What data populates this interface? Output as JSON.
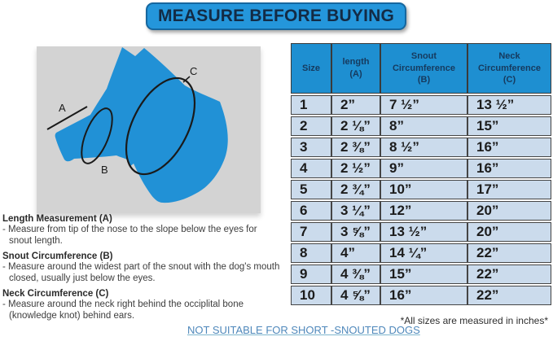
{
  "banner": {
    "title": "MEASURE BEFORE BUYING"
  },
  "diagram": {
    "label_a": "A",
    "label_b": "B",
    "label_c": "C"
  },
  "table": {
    "headers": [
      "Size",
      "length\n(A)",
      "Snout\nCircumference\n(B)",
      "Neck\nCircumference\n(C)"
    ],
    "rows": [
      [
        "1",
        "2”",
        "7 ½”",
        "13 ½”"
      ],
      [
        "2",
        "2 ⅛”",
        "8”",
        "15”"
      ],
      [
        "3",
        "2 ⅜”",
        "8 ½”",
        "16”"
      ],
      [
        "4",
        "2 ½”",
        "9”",
        "16”"
      ],
      [
        "5",
        "2 ¾”",
        "10”",
        "17”"
      ],
      [
        "6",
        "3 ¼”",
        "12”",
        "20”"
      ],
      [
        "7",
        "3 ⅝”",
        "13 ½”",
        "20”"
      ],
      [
        "8",
        "4”",
        "14 ¼”",
        "22”"
      ],
      [
        "9",
        "4 ⅜”",
        "15”",
        "22”"
      ],
      [
        "10",
        "4 ⅝”",
        "16”",
        "22”"
      ]
    ],
    "footnote": "*All sizes are measured in inches*"
  },
  "notes": [
    {
      "heading": "Length Measurement (A)",
      "body": "- Measure from tip of the nose to the slope below the eyes for\nsnout length."
    },
    {
      "heading": "Snout Circumference (B)",
      "body": "- Measure around the widest part of the snout with the dog's mouth\nclosed, usually just below the eyes."
    },
    {
      "heading": "Neck Circumference (C)",
      "body": "- Measure around the neck right behind the occiplital bone\n(knowledge knot) behind ears."
    }
  ],
  "warning": "NOT SUITABLE FOR SHORT -SNOUTED DOGS",
  "colors": {
    "banner_blue": "#2496db",
    "banner_border": "#16679f",
    "header_blue": "#1e8fd1",
    "row_blue": "#cbdbec",
    "dog_blue": "#2191d6",
    "panel_gray": "#d3d3d3",
    "link_blue": "#4f88bb",
    "navy_text": "#163a5e"
  }
}
